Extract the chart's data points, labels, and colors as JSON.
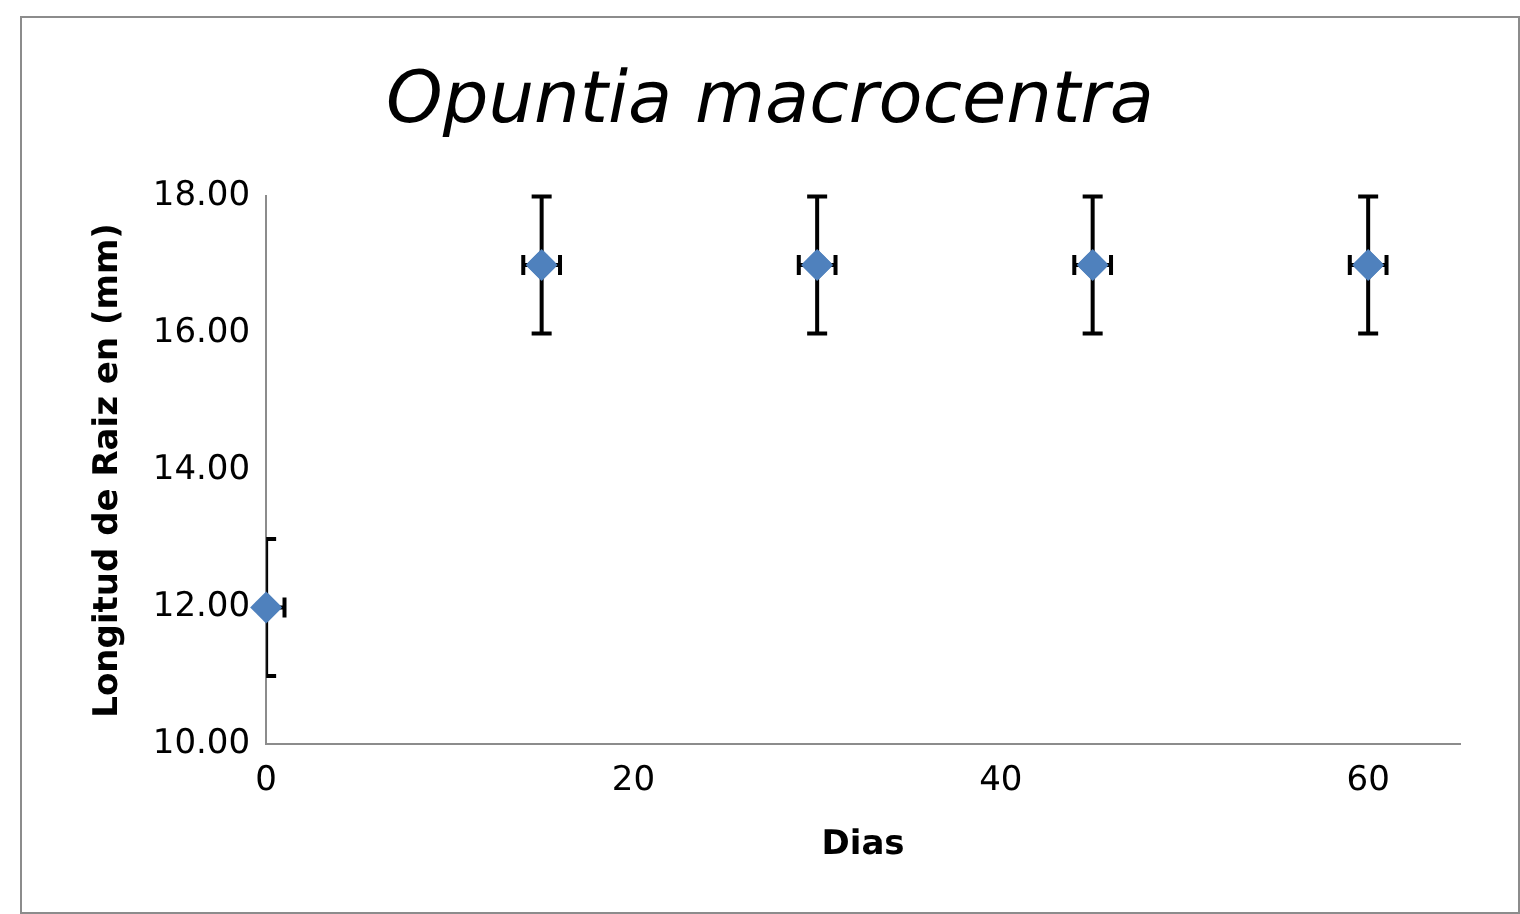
{
  "chart_data": {
    "type": "scatter",
    "title": "Opuntia macrocentra",
    "xlabel": "Dias",
    "ylabel": "Longitud de Raiz en (mm)",
    "x": [
      0,
      15,
      30,
      45,
      60
    ],
    "series": [
      {
        "color": "#4f81bd",
        "values": [
          12,
          17,
          17,
          17,
          17
        ],
        "errors": [
          1,
          1,
          1,
          1,
          1
        ],
        "xerrors": [
          1,
          1,
          1,
          1,
          1
        ]
      }
    ],
    "xlim": [
      0,
      65
    ],
    "xticks": [
      0,
      20,
      40,
      60
    ],
    "ylim": [
      10,
      18
    ],
    "yticks": [
      {
        "value": 10,
        "label": "10.00"
      },
      {
        "value": 12,
        "label": "12.00"
      },
      {
        "value": 14,
        "label": "14.00"
      },
      {
        "value": 16,
        "label": "16.00"
      },
      {
        "value": 18,
        "label": "18.00"
      }
    ],
    "marker": "diamond",
    "grid": false,
    "legend": false
  }
}
